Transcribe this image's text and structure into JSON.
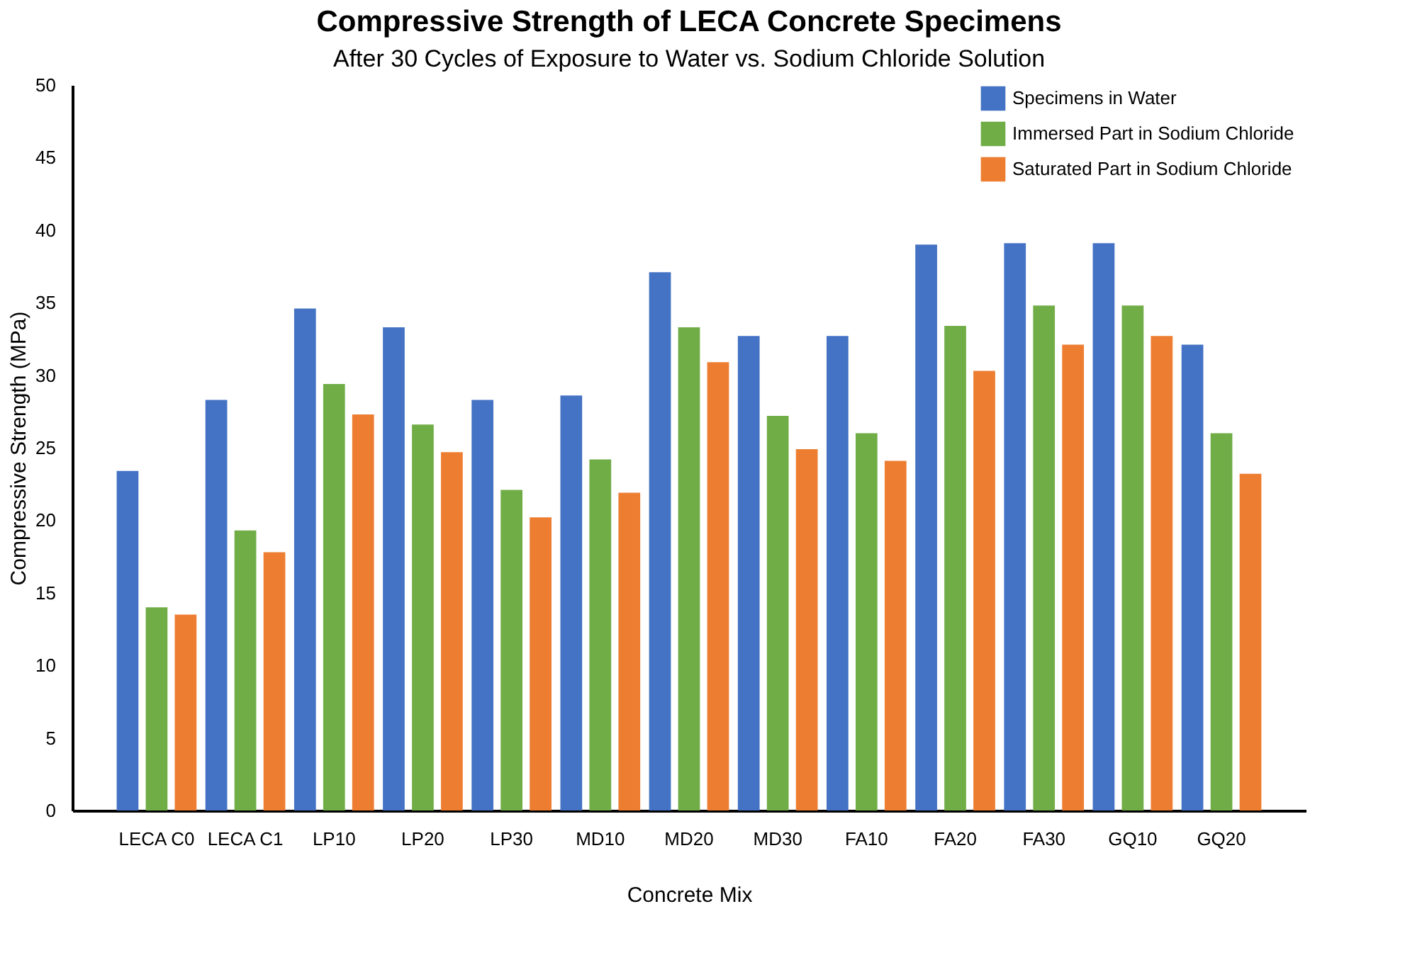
{
  "chart_data": {
    "type": "bar",
    "title": "Compressive Strength of LECA Concrete Specimens",
    "subtitle": "After 30 Cycles of Exposure to Water vs. Sodium Chloride Solution",
    "xlabel": "Concrete Mix",
    "ylabel": "Compressive Strength (MPa)",
    "categories": [
      "LECA C0",
      "LECA C1",
      "LP10",
      "LP20",
      "LP30",
      "MD10",
      "MD20",
      "MD30",
      "FA10",
      "FA20",
      "FA30",
      "GQ10",
      "GQ20"
    ],
    "series": [
      {
        "name": "Specimens in Water",
        "color": "#4472c4",
        "values": [
          23.4,
          28.3,
          34.6,
          33.3,
          28.3,
          28.6,
          37.1,
          32.7,
          32.7,
          39.0,
          39.1,
          39.1,
          32.1
        ]
      },
      {
        "name": "Immersed Part in Sodium Chloride",
        "color": "#70ad47",
        "values": [
          14.0,
          19.3,
          29.4,
          26.6,
          22.1,
          24.2,
          33.3,
          27.2,
          26.0,
          33.4,
          34.8,
          34.8,
          26.0
        ]
      },
      {
        "name": "Saturated Part in Sodium Chloride",
        "color": "#ed7d31",
        "values": [
          13.5,
          17.8,
          27.3,
          24.7,
          20.2,
          21.9,
          30.9,
          24.9,
          24.1,
          30.3,
          32.1,
          32.7,
          23.2
        ]
      }
    ],
    "ylim": [
      0,
      50
    ],
    "yticks": [
      0,
      5,
      10,
      15,
      20,
      25,
      30,
      35,
      40,
      45,
      50
    ],
    "grid": false,
    "legend": "top right"
  }
}
